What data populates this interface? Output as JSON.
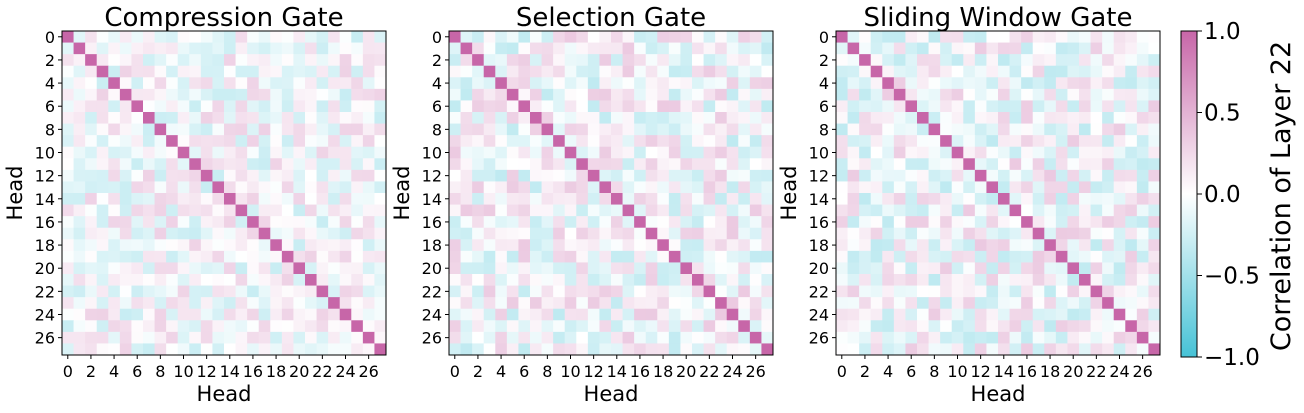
{
  "chart_data": {
    "type": "heatmap",
    "colormap": {
      "low": "#46c2d6",
      "mid": "#ffffff",
      "high": "#c766a8"
    },
    "vmin": -1.0,
    "vmax": 1.0,
    "n_heads": 28,
    "colorbar": {
      "label": "Correlation of Layer 22",
      "ticks": [
        "1.0",
        "0.5",
        "0.0",
        "−0.5",
        "−1.0"
      ],
      "tick_values": [
        1.0,
        0.5,
        0.0,
        -0.5,
        -1.0
      ]
    },
    "panels": [
      {
        "title": "Compression Gate",
        "xlabel": "Head",
        "ylabel": "Head",
        "xticks": [
          "0",
          "2",
          "4",
          "6",
          "8",
          "10",
          "12",
          "14",
          "16",
          "18",
          "20",
          "22",
          "24",
          "26"
        ],
        "yticks": [
          "0",
          "2",
          "4",
          "6",
          "8",
          "10",
          "12",
          "14",
          "16",
          "18",
          "20",
          "22",
          "24",
          "26"
        ],
        "diagonal": 1.0,
        "seed": 17,
        "amplitude": 0.3
      },
      {
        "title": "Selection Gate",
        "xlabel": "Head",
        "ylabel": "Head",
        "xticks": [
          "0",
          "2",
          "4",
          "6",
          "8",
          "10",
          "12",
          "14",
          "16",
          "18",
          "20",
          "22",
          "24",
          "26"
        ],
        "yticks": [
          "0",
          "2",
          "4",
          "6",
          "8",
          "10",
          "12",
          "14",
          "16",
          "18",
          "20",
          "22",
          "24",
          "26"
        ],
        "diagonal": 1.0,
        "seed": 42,
        "amplitude": 0.35
      },
      {
        "title": "Sliding Window Gate",
        "xlabel": "Head",
        "ylabel": "Head",
        "xticks": [
          "0",
          "2",
          "4",
          "6",
          "8",
          "10",
          "12",
          "14",
          "16",
          "18",
          "20",
          "22",
          "24",
          "26"
        ],
        "yticks": [
          "0",
          "2",
          "4",
          "6",
          "8",
          "10",
          "12",
          "14",
          "16",
          "18",
          "20",
          "22",
          "24",
          "26"
        ],
        "diagonal": 1.0,
        "seed": 91,
        "amplitude": 0.35
      }
    ]
  }
}
